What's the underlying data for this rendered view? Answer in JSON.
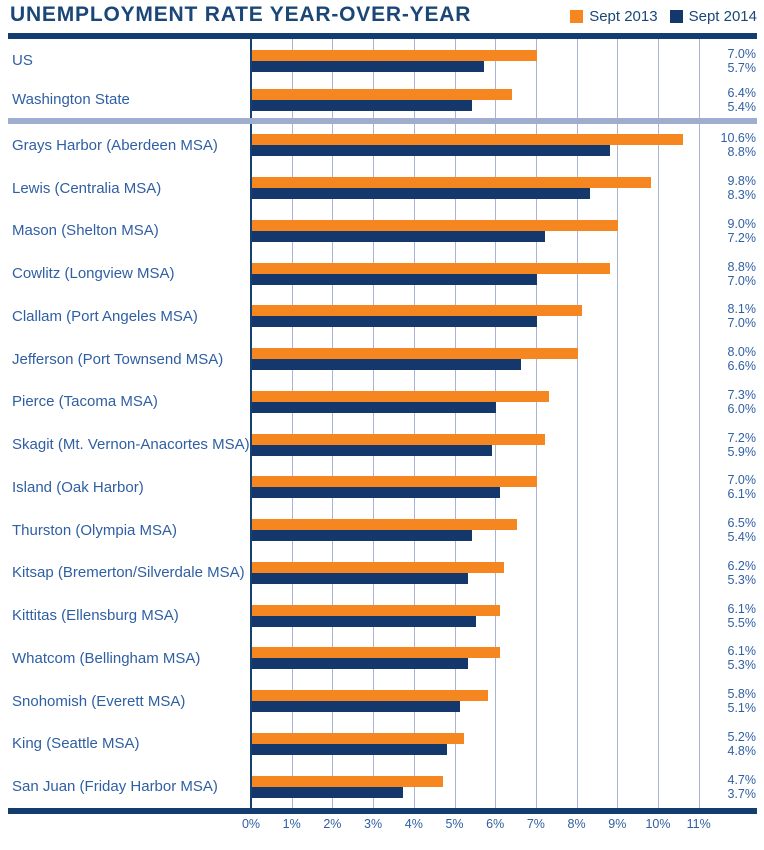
{
  "header": {
    "title": "UNEMPLOYMENT RATE YEAR-OVER-YEAR"
  },
  "legend": {
    "items": [
      {
        "label": "Sept 2013",
        "color": "#F6861F"
      },
      {
        "label": "Sept 2014",
        "color": "#14386B"
      }
    ]
  },
  "colors": {
    "orange": "#F6861F",
    "navy": "#14386B",
    "rule": "#133C70",
    "zero_axis_line": "#16406F",
    "gridline": "#A9B4D4",
    "section_divider": "#9FAECE",
    "title_text": "#1A4778",
    "label_text": "#2F5FA3"
  },
  "chart_data": {
    "type": "bar",
    "orientation": "horizontal",
    "title": "UNEMPLOYMENT RATE YEAR-OVER-YEAR",
    "xlim": [
      0,
      11
    ],
    "x_tick_labels": [
      "0%",
      "1%",
      "2%",
      "3%",
      "4%",
      "5%",
      "6%",
      "7%",
      "8%",
      "9%",
      "10%",
      "11%"
    ],
    "grid": "vertical",
    "legend_position": "top-right",
    "value_label_format": "{value}%",
    "divider_after_category_index": 1,
    "categories": [
      "US",
      "Washington State",
      "Grays Harbor (Aberdeen MSA)",
      "Lewis (Centralia MSA)",
      "Mason (Shelton MSA)",
      "Cowlitz (Longview MSA)",
      "Clallam (Port Angeles MSA)",
      "Jefferson (Port Townsend MSA)",
      "Pierce (Tacoma MSA)",
      "Skagit (Mt. Vernon-Anacortes MSA)",
      "Island (Oak Harbor)",
      "Thurston (Olympia MSA)",
      "Kitsap (Bremerton/Silverdale MSA)",
      "Kittitas (Ellensburg MSA)",
      "Whatcom (Bellingham MSA)",
      "Snohomish (Everett MSA)",
      "King (Seattle MSA)",
      "San Juan (Friday Harbor MSA)"
    ],
    "series": [
      {
        "name": "Sept 2013",
        "color": "#F6861F",
        "values": [
          7.0,
          6.4,
          10.6,
          9.8,
          9.0,
          8.8,
          8.1,
          8.0,
          7.3,
          7.2,
          7.0,
          6.5,
          6.2,
          6.1,
          6.1,
          5.8,
          5.2,
          4.7
        ]
      },
      {
        "name": "Sept 2014",
        "color": "#14386B",
        "values": [
          5.7,
          5.4,
          8.8,
          8.3,
          7.2,
          7.0,
          7.0,
          6.6,
          6.0,
          5.9,
          6.1,
          5.4,
          5.3,
          5.5,
          5.3,
          5.1,
          4.8,
          3.7
        ]
      }
    ]
  }
}
